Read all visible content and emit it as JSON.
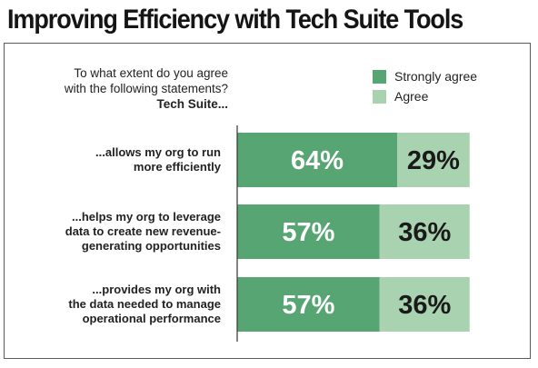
{
  "title": "Improving Efficiency with Tech Suite Tools",
  "question": {
    "lines": [
      "To what extent do you agree",
      "with the following statements?"
    ],
    "subject": "Tech Suite..."
  },
  "chart_data": {
    "type": "bar",
    "orientation": "horizontal",
    "stacked": true,
    "title": "Improving Efficiency with Tech Suite Tools",
    "categories": [
      [
        "...allows my org to run",
        "more efficiently"
      ],
      [
        "...helps my org to leverage",
        "data to create new revenue-",
        "generating opportunities"
      ],
      [
        "...provides my org with",
        "the data needed to manage",
        "operational performance"
      ]
    ],
    "series": [
      {
        "name": "Strongly agree",
        "values": [
          64,
          57,
          57
        ],
        "labels": [
          "64%",
          "57%",
          "57%"
        ],
        "color": "#58a574",
        "text_color": "#ffffff"
      },
      {
        "name": "Agree",
        "values": [
          29,
          36,
          36
        ],
        "labels": [
          "29%",
          "36%",
          "36%"
        ],
        "color": "#a9d3b0",
        "text_color": "#1a1a1a"
      }
    ],
    "xlim": [
      0,
      100
    ],
    "legend": "top-right",
    "grid": false
  }
}
